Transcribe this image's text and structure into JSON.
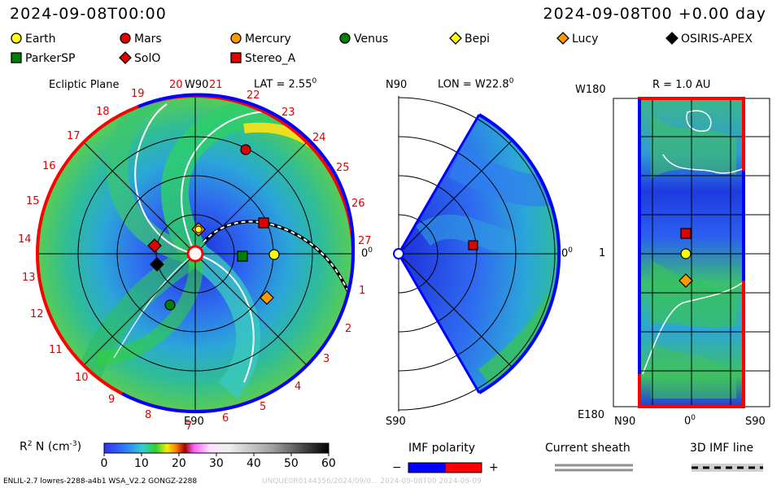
{
  "header": {
    "left_time": "2024-09-08T00:00",
    "right_time": "2024-09-08T00 +0.00 day"
  },
  "legend": [
    {
      "label": "Earth",
      "marker": "circle",
      "color": "#ffff00"
    },
    {
      "label": "Mars",
      "marker": "circle",
      "color": "#e00000"
    },
    {
      "label": "Mercury",
      "marker": "circle",
      "color": "#ff9900"
    },
    {
      "label": "Venus",
      "marker": "circle",
      "color": "#008000"
    },
    {
      "label": "Bepi",
      "marker": "diamond",
      "color": "#ffff00"
    },
    {
      "label": "Lucy",
      "marker": "diamond",
      "color": "#ff9900"
    },
    {
      "label": "OSIRIS-APEX",
      "marker": "diamond",
      "color": "#000000"
    },
    {
      "label": "ParkerSP",
      "marker": "square",
      "color": "#008000"
    },
    {
      "label": "SolO",
      "marker": "diamond",
      "color": "#e00000"
    },
    {
      "label": "Stereo_A",
      "marker": "square",
      "color": "#e00000"
    }
  ],
  "ecliptic": {
    "title": "Ecliptic Plane",
    "lat_label": "LAT = 2.55",
    "lat_sup": "0",
    "top_label": "W90",
    "bottom_label": "E90",
    "right_label": "0",
    "right_sup": "0",
    "sectors": [
      "1",
      "2",
      "3",
      "4",
      "5",
      "6",
      "7",
      "8",
      "9",
      "10",
      "11",
      "12",
      "13",
      "14",
      "15",
      "16",
      "17",
      "18",
      "19",
      "20",
      "21",
      "22",
      "23",
      "24",
      "25",
      "26",
      "27"
    ]
  },
  "meridional": {
    "top_left": "N90",
    "lon_label": "LON = W22.8",
    "lon_sup": "0",
    "right_label": "0",
    "right_sup": "0",
    "bottom_left": "S90"
  },
  "radial": {
    "top_left": "W180",
    "r_label": "R = 1.0 AU",
    "mid_left": "1",
    "bottom_left": "E180",
    "x_left": "N90",
    "x_mid": "0",
    "x_mid_sup": "0",
    "x_right": "S90"
  },
  "colorbar": {
    "label": "R",
    "label_sup": "2",
    "label_rest": " N (cm",
    "label_exp": "-3",
    "label_close": ")",
    "ticks": [
      "0",
      "10",
      "20",
      "30",
      "40",
      "50",
      "60"
    ]
  },
  "imf": {
    "title": "IMF polarity",
    "minus": "−",
    "plus": "+",
    "neg_color": "#0000ff",
    "pos_color": "#ff0000"
  },
  "sheath": {
    "title": "Current sheath"
  },
  "imfline": {
    "title": "3D IMF line"
  },
  "footer": {
    "left": "ENLIL-2.7 lowres-2288-a4b1 WSA_V2.2 GONGZ-2288",
    "right": "UNQUE0R0144356/2024/09/0... 2024-09-08T00  2024-09-09"
  }
}
